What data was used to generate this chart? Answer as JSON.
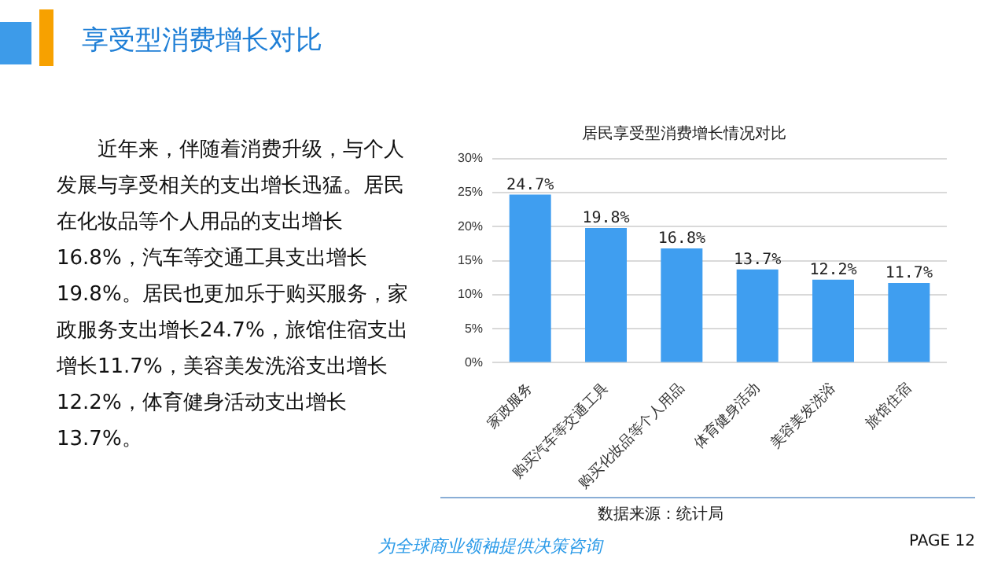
{
  "chart_data": {
    "type": "bar",
    "title": "享受型消费增长对比",
    "subtitle": "居民享受型消费增长情况对比",
    "categories": [
      "家政服务",
      "购买汽车等交通工具",
      "购买化妆品等个人用品",
      "体育健身活动",
      "美容美发洗浴",
      "旅馆住宿"
    ],
    "values": [
      24.7,
      19.8,
      16.8,
      13.7,
      12.2,
      11.7
    ],
    "value_labels": [
      "24.7%",
      "19.8%",
      "16.8%",
      "13.7%",
      "12.2%",
      "11.7%"
    ],
    "color": "#3f9ef0",
    "ylim": [
      0,
      30
    ],
    "yticks": [
      {
        "value": 0,
        "label": "0%"
      },
      {
        "value": 5,
        "label": "5%"
      },
      {
        "value": 10,
        "label": "10%"
      },
      {
        "value": 15,
        "label": "15%"
      },
      {
        "value": 20,
        "label": "20%"
      },
      {
        "value": 25,
        "label": "25%"
      },
      {
        "value": 30,
        "label": "30%"
      }
    ],
    "grid": "y",
    "legend": false,
    "annotations": [
      "近年来，伴随着消费升级，与个人发展与享受相关的支出增长迅猛。居民在化妆品等个人用品的支出增长16.8%，汽车等交通工具支出增长19.8%。居民也更加乐于购买服务，家政服务支出增长24.7%，旅馆住宿支出增长11.7%，美容美发洗浴支出增长12.2%，体育健身活动支出增长13.7%。",
      "数据来源：统计局",
      "为全球商业领袖提供决策咨询",
      "PAGE 12"
    ]
  }
}
